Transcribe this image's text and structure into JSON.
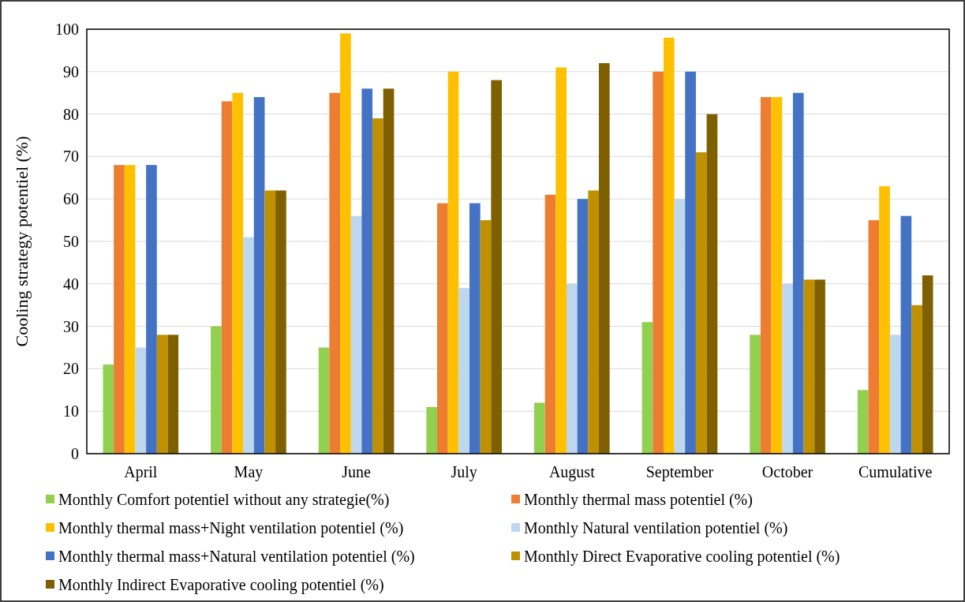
{
  "chart_data": {
    "type": "bar",
    "ylabel": "Cooling strategy potentiel (%)",
    "categories": [
      "April",
      "May",
      "June",
      "July",
      "August",
      "September",
      "October",
      "Cumulative"
    ],
    "series": [
      {
        "name": "Monthly Comfort potentiel without any strategie(%)",
        "color": "#92d050",
        "values": [
          21,
          30,
          25,
          11,
          12,
          31,
          28,
          15
        ]
      },
      {
        "name": "Monthly thermal mass potentiel (%)",
        "color": "#ed7d31",
        "values": [
          68,
          83,
          85,
          59,
          61,
          90,
          84,
          55
        ]
      },
      {
        "name": "Monthly thermal mass+Night ventilation potentiel (%)",
        "color": "#ffc000",
        "values": [
          68,
          85,
          99,
          90,
          91,
          98,
          84,
          63
        ]
      },
      {
        "name": "Monthly Natural ventilation potentiel (%)",
        "color": "#bdd7ee",
        "values": [
          25,
          51,
          56,
          39,
          40,
          60,
          40,
          28
        ]
      },
      {
        "name": "Monthly thermal mass+Natural ventilation potentiel (%)",
        "color": "#4472c4",
        "values": [
          68,
          84,
          86,
          59,
          60,
          90,
          85,
          56
        ]
      },
      {
        "name": "Monthly Direct Evaporative cooling potentiel (%)",
        "color": "#bf9000",
        "values": [
          28,
          62,
          79,
          55,
          62,
          71,
          41,
          35
        ]
      },
      {
        "name": "Monthly Indirect Evaporative cooling potentiel (%)",
        "color": "#7f6000",
        "values": [
          28,
          62,
          86,
          88,
          92,
          80,
          41,
          42
        ]
      }
    ],
    "ylim": [
      0,
      100
    ],
    "yticks": [
      0,
      10,
      20,
      30,
      40,
      50,
      60,
      70,
      80,
      90,
      100
    ],
    "grid": "y",
    "legend": "bottom"
  }
}
